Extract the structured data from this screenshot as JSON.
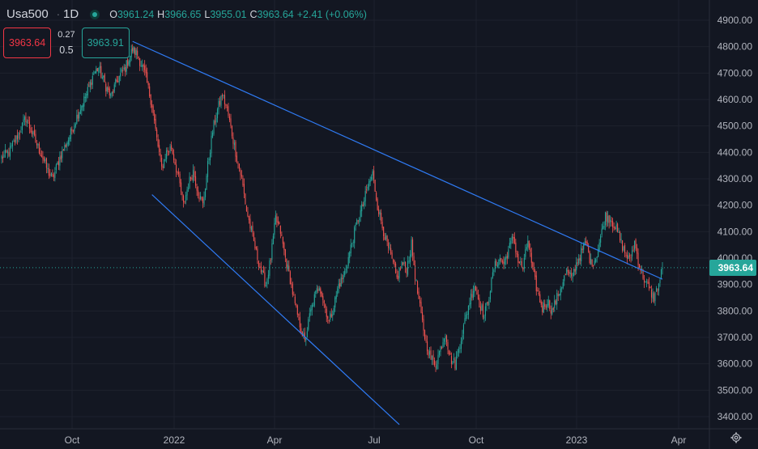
{
  "header": {
    "symbol": "Usa500",
    "separator": "·",
    "timeframe": "1D",
    "ohlc": {
      "o_label": "O",
      "o_value": "3961.24",
      "h_label": "H",
      "h_value": "3966.65",
      "l_label": "L",
      "l_value": "3955.01",
      "c_label": "C",
      "c_value": "3963.64",
      "change": "+2.41 (+0.06%)"
    }
  },
  "trade_panel": {
    "sell_price": "3963.64",
    "spread": "0.27",
    "lot": "0.5",
    "buy_price": "3963.91"
  },
  "last_price_label": "3963.64",
  "colors": {
    "background": "#131722",
    "up": "#26a69a",
    "down": "#ef5350",
    "trendline": "#2962ff",
    "grid": "#1e222d"
  },
  "icons": [
    "live-dot-icon",
    "settings-gear-icon"
  ],
  "chart_data": {
    "type": "candlestick",
    "y_axis_ticks": [
      4900,
      4800,
      4700,
      4600,
      4500,
      4400,
      4300,
      4200,
      4100,
      4000,
      3900,
      3800,
      3700,
      3600,
      3500,
      3400
    ],
    "y_axis_tick_labels": [
      "4900.00",
      "4800.00",
      "4700.00",
      "4600.00",
      "4500.00",
      "4400.00",
      "4300.00",
      "4200.00",
      "4100.00",
      "4000.00",
      "3900.00",
      "3800.00",
      "3700.00",
      "3600.00",
      "3500.00",
      "3400.00"
    ],
    "x_axis_labels": [
      "Oct",
      "2022",
      "Apr",
      "Jul",
      "Oct",
      "2023",
      "Apr"
    ],
    "ylim": [
      3360,
      4960
    ],
    "grid": true,
    "last_close": 3963.64,
    "path_anchors": [
      [
        0,
        4380
      ],
      [
        6,
        4400
      ],
      [
        14,
        4470
      ],
      [
        20,
        4530
      ],
      [
        28,
        4440
      ],
      [
        34,
        4380
      ],
      [
        38,
        4330
      ],
      [
        42,
        4300
      ],
      [
        48,
        4380
      ],
      [
        56,
        4460
      ],
      [
        64,
        4560
      ],
      [
        70,
        4620
      ],
      [
        76,
        4700
      ],
      [
        80,
        4720
      ],
      [
        86,
        4650
      ],
      [
        90,
        4610
      ],
      [
        96,
        4680
      ],
      [
        102,
        4720
      ],
      [
        108,
        4790
      ],
      [
        112,
        4770
      ],
      [
        118,
        4700
      ],
      [
        124,
        4580
      ],
      [
        128,
        4450
      ],
      [
        132,
        4340
      ],
      [
        136,
        4400
      ],
      [
        140,
        4420
      ],
      [
        146,
        4300
      ],
      [
        150,
        4200
      ],
      [
        154,
        4280
      ],
      [
        158,
        4330
      ],
      [
        162,
        4250
      ],
      [
        166,
        4200
      ],
      [
        170,
        4350
      ],
      [
        174,
        4480
      ],
      [
        178,
        4560
      ],
      [
        182,
        4620
      ],
      [
        186,
        4560
      ],
      [
        190,
        4470
      ],
      [
        194,
        4380
      ],
      [
        198,
        4300
      ],
      [
        202,
        4180
      ],
      [
        206,
        4100
      ],
      [
        210,
        4020
      ],
      [
        214,
        3950
      ],
      [
        218,
        3900
      ],
      [
        222,
        4000
      ],
      [
        226,
        4150
      ],
      [
        230,
        4100
      ],
      [
        234,
        4000
      ],
      [
        238,
        3920
      ],
      [
        242,
        3820
      ],
      [
        246,
        3750
      ],
      [
        250,
        3680
      ],
      [
        254,
        3780
      ],
      [
        258,
        3850
      ],
      [
        262,
        3900
      ],
      [
        266,
        3830
      ],
      [
        270,
        3760
      ],
      [
        274,
        3820
      ],
      [
        278,
        3900
      ],
      [
        282,
        3930
      ],
      [
        286,
        4000
      ],
      [
        290,
        4080
      ],
      [
        294,
        4150
      ],
      [
        298,
        4200
      ],
      [
        302,
        4270
      ],
      [
        306,
        4320
      ],
      [
        310,
        4200
      ],
      [
        314,
        4120
      ],
      [
        318,
        4050
      ],
      [
        322,
        3990
      ],
      [
        326,
        3920
      ],
      [
        330,
        3980
      ],
      [
        334,
        3960
      ],
      [
        338,
        4050
      ],
      [
        342,
        3900
      ],
      [
        346,
        3780
      ],
      [
        350,
        3680
      ],
      [
        354,
        3620
      ],
      [
        358,
        3600
      ],
      [
        362,
        3660
      ],
      [
        366,
        3720
      ],
      [
        370,
        3620
      ],
      [
        374,
        3600
      ],
      [
        378,
        3680
      ],
      [
        382,
        3760
      ],
      [
        386,
        3840
      ],
      [
        390,
        3900
      ],
      [
        394,
        3830
      ],
      [
        398,
        3780
      ],
      [
        402,
        3860
      ],
      [
        406,
        3960
      ],
      [
        410,
        4000
      ],
      [
        414,
        3980
      ],
      [
        418,
        4030
      ],
      [
        422,
        4080
      ],
      [
        426,
        3990
      ],
      [
        430,
        3960
      ],
      [
        434,
        4070
      ],
      [
        438,
        3950
      ],
      [
        442,
        3870
      ],
      [
        446,
        3810
      ],
      [
        450,
        3840
      ],
      [
        454,
        3800
      ],
      [
        458,
        3850
      ],
      [
        462,
        3900
      ],
      [
        466,
        3950
      ],
      [
        470,
        3920
      ],
      [
        474,
        3980
      ],
      [
        478,
        4020
      ],
      [
        482,
        4060
      ],
      [
        486,
        3980
      ],
      [
        490,
        4000
      ],
      [
        494,
        4080
      ],
      [
        498,
        4160
      ],
      [
        502,
        4150
      ],
      [
        506,
        4120
      ],
      [
        510,
        4070
      ],
      [
        514,
        4020
      ],
      [
        518,
        3990
      ],
      [
        522,
        4060
      ],
      [
        526,
        3970
      ],
      [
        530,
        3920
      ],
      [
        534,
        3880
      ],
      [
        538,
        3850
      ],
      [
        542,
        3900
      ],
      [
        545,
        3963.64
      ]
    ],
    "trendlines": [
      {
        "name": "upper-resistance",
        "from": [
          108,
          4820
        ],
        "to": [
          545,
          3920
        ]
      },
      {
        "name": "lower-support",
        "from": [
          124,
          4240
        ],
        "to": [
          328,
          3370
        ]
      }
    ]
  }
}
